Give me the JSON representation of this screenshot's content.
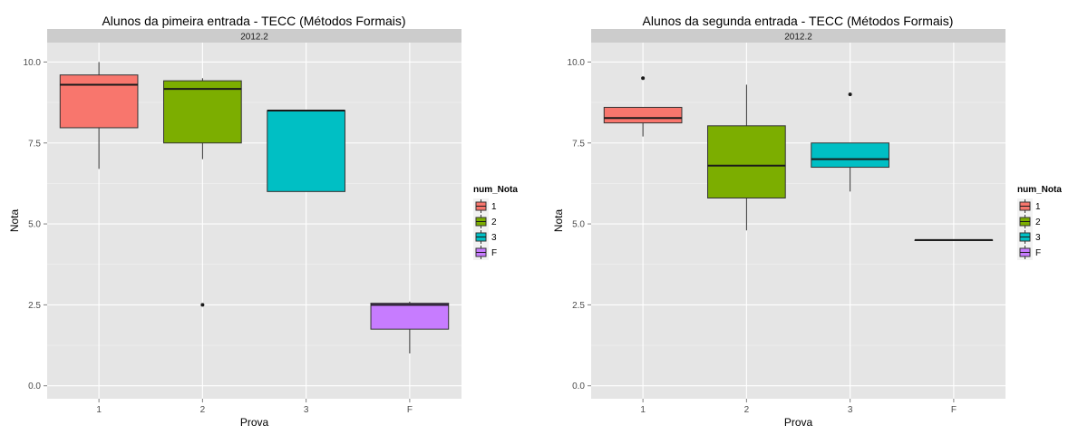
{
  "chart_data": [
    {
      "type": "boxplot",
      "title": "Alunos da pimeira entrada -  TECC (Métodos Formais)",
      "facet_label": "2012.2",
      "xlabel": "Prova",
      "ylabel": "Nota",
      "categories": [
        "1",
        "2",
        "3",
        "F"
      ],
      "ylim": [
        -0.4,
        10.6
      ],
      "y_ticks": [
        0.0,
        2.5,
        5.0,
        7.5,
        10.0
      ],
      "y_tick_labels": [
        "0.0",
        "2.5",
        "5.0",
        "7.5",
        "10.0"
      ],
      "grid": true,
      "boxes": [
        {
          "category": "1",
          "min": 6.7,
          "q1": 7.97,
          "median": 9.3,
          "q3": 9.6,
          "max": 10.0,
          "outliers": []
        },
        {
          "category": "2",
          "min": 7.0,
          "q1": 7.5,
          "median": 9.17,
          "q3": 9.42,
          "max": 9.5,
          "outliers": [
            2.5
          ]
        },
        {
          "category": "3",
          "min": 6.0,
          "q1": 6.0,
          "median": 8.5,
          "q3": 8.5,
          "max": 8.5,
          "outliers": []
        },
        {
          "category": "F",
          "min": 1.0,
          "q1": 1.75,
          "median": 2.5,
          "q3": 2.55,
          "max": 2.6,
          "outliers": []
        }
      ],
      "legend": {
        "title": "num_Nota",
        "position": "right",
        "items": [
          "1",
          "2",
          "3",
          "F"
        ]
      }
    },
    {
      "type": "boxplot",
      "title": "Alunos da segunda entrada -  TECC (Métodos Formais)",
      "facet_label": "2012.2",
      "xlabel": "Prova",
      "ylabel": "Nota",
      "categories": [
        "1",
        "2",
        "3",
        "F"
      ],
      "ylim": [
        -0.4,
        10.6
      ],
      "y_ticks": [
        0.0,
        2.5,
        5.0,
        7.5,
        10.0
      ],
      "y_tick_labels": [
        "0.0",
        "2.5",
        "5.0",
        "7.5",
        "10.0"
      ],
      "grid": true,
      "boxes": [
        {
          "category": "1",
          "min": 7.7,
          "q1": 8.12,
          "median": 8.27,
          "q3": 8.6,
          "max": 8.6,
          "outliers": [
            9.5
          ]
        },
        {
          "category": "2",
          "min": 4.8,
          "q1": 5.8,
          "median": 6.8,
          "q3": 8.03,
          "max": 9.3,
          "outliers": []
        },
        {
          "category": "3",
          "min": 6.0,
          "q1": 6.75,
          "median": 7.0,
          "q3": 7.5,
          "max": 7.5,
          "outliers": [
            9.0
          ]
        },
        {
          "category": "F",
          "min": 4.5,
          "q1": 4.5,
          "median": 4.5,
          "q3": 4.5,
          "max": 4.5,
          "outliers": []
        }
      ],
      "legend": {
        "title": "num_Nota",
        "position": "right",
        "items": [
          "1",
          "2",
          "3",
          "F"
        ]
      }
    }
  ],
  "colors": {
    "1": "#F8766D",
    "2": "#7CAE00",
    "3": "#00BFC4",
    "F": "#C77CFF",
    "panel_background": "#E5E5E5",
    "strip_background": "#CCCCCC",
    "grid": "#FFFFFF"
  }
}
